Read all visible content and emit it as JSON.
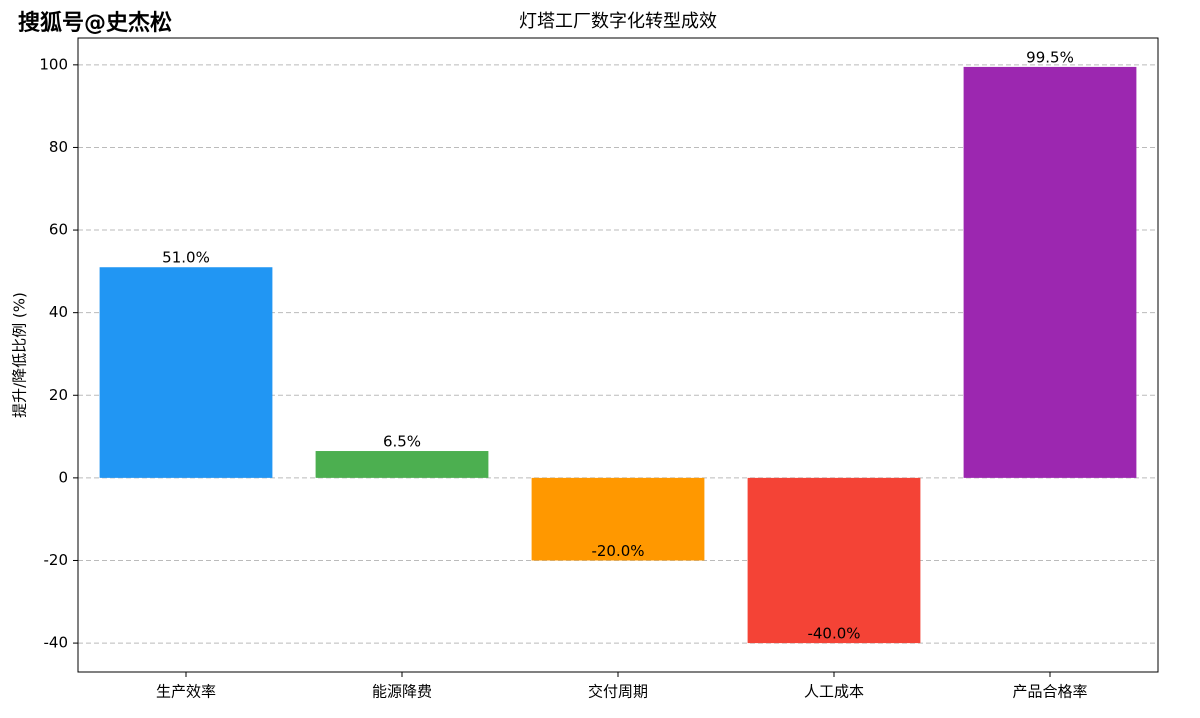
{
  "chart_data": {
    "type": "bar",
    "title": "灯塔工厂数字化转型成效",
    "watermark": "搜狐号@史杰松",
    "y_label": "提升/降低比例 (%)",
    "categories": [
      "生产效率",
      "能源降费",
      "交付周期",
      "人工成本",
      "产品合格率"
    ],
    "values": [
      51.0,
      6.5,
      -20.0,
      -40.0,
      99.5
    ],
    "value_labels": [
      "51.0%",
      "6.5%",
      "-20.0%",
      "-40.0%",
      "99.5%"
    ],
    "colors": [
      "#2196f3",
      "#4caf50",
      "#ff9800",
      "#f44336",
      "#9c27b0"
    ],
    "ylim": [
      -47,
      106.5
    ],
    "yticks": [
      -40,
      -20,
      0,
      20,
      40,
      60,
      80,
      100
    ],
    "grid": true
  }
}
